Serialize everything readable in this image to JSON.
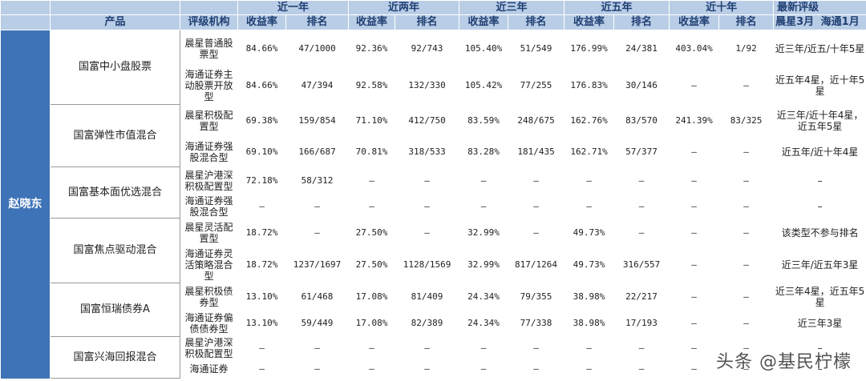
{
  "header": {
    "product": "产品",
    "agency": "评级机构",
    "periods": [
      "近一年",
      "近两年",
      "近三年",
      "近五年",
      "近十年"
    ],
    "return_label": "收益率",
    "rank_label": "排名",
    "latest": "最新评级",
    "latest_sub1": "晨星3月",
    "latest_sub2": "海通1月"
  },
  "manager": "赵晓东",
  "funds": [
    {
      "name": "国富中小盘股票",
      "rows": [
        {
          "agency": "晨星普通股票型",
          "cells": [
            "84.66%",
            "47/1000",
            "92.36%",
            "92/743",
            "105.40%",
            "51/549",
            "176.99%",
            "24/381",
            "403.04%",
            "1/92"
          ],
          "rating": "近三年/近五/十年5星"
        },
        {
          "agency": "海通证券主动股票开放型",
          "cells": [
            "84.66%",
            "47/394",
            "92.58%",
            "132/330",
            "105.42%",
            "77/255",
            "176.83%",
            "30/146",
            "–",
            "–"
          ],
          "rating": "近五年4星，近十年5星"
        }
      ]
    },
    {
      "name": "国富弹性市值混合",
      "rows": [
        {
          "agency": "晨星积极配置型",
          "cells": [
            "69.38%",
            "159/854",
            "71.10%",
            "412/750",
            "83.59%",
            "248/675",
            "162.76%",
            "83/570",
            "241.39%",
            "83/325"
          ],
          "rating": "近三年/近十年4星，近五年5星"
        },
        {
          "agency": "海通证券强股混合型",
          "cells": [
            "69.10%",
            "166/687",
            "70.81%",
            "318/533",
            "83.28%",
            "181/435",
            "162.71%",
            "57/377",
            "–",
            "–"
          ],
          "rating": "近五年/近十年4星"
        }
      ]
    },
    {
      "name": "国富基本面优选混合",
      "rows": [
        {
          "agency": "晨星沪港深积极配置型",
          "cells": [
            "72.18%",
            "58/312",
            "–",
            "–",
            "–",
            "–",
            "–",
            "–",
            "–",
            "–"
          ],
          "rating": "–"
        },
        {
          "agency": "海通证券强股混合型",
          "cells": [
            "–",
            "–",
            "–",
            "–",
            "–",
            "–",
            "–",
            "–",
            "–",
            "–"
          ],
          "rating": "–"
        }
      ]
    },
    {
      "name": "国富焦点驱动混合",
      "rows": [
        {
          "agency": "晨星灵活配置型",
          "cells": [
            "18.72%",
            "–",
            "27.50%",
            "–",
            "32.99%",
            "–",
            "49.73%",
            "–",
            "–",
            "–"
          ],
          "rating": "该类型不参与排名"
        },
        {
          "agency": "海通证券灵活策略混合型",
          "cells": [
            "18.72%",
            "1237/1697",
            "27.50%",
            "1128/1569",
            "32.99%",
            "817/1264",
            "49.73%",
            "316/557",
            "–",
            "–"
          ],
          "rating": "近三年/近五年3星"
        }
      ]
    },
    {
      "name": "国富恒瑞债券A",
      "rows": [
        {
          "agency": "晨星积极债券型",
          "cells": [
            "13.10%",
            "61/468",
            "17.08%",
            "81/409",
            "24.34%",
            "79/355",
            "38.98%",
            "22/217",
            "–",
            "–"
          ],
          "rating": "近三年4星，近五年5星"
        },
        {
          "agency": "海通证券偏债债券型",
          "cells": [
            "13.10%",
            "59/449",
            "17.08%",
            "82/389",
            "24.34%",
            "77/338",
            "38.98%",
            "17/193",
            "–",
            "–"
          ],
          "rating": "近三年3星"
        }
      ]
    },
    {
      "name": "国富兴海回报混合",
      "rows": [
        {
          "agency": "晨星沪港深积极配置型",
          "cells": [
            "–",
            "–",
            "–",
            "–",
            "–",
            "–",
            "–",
            "–",
            "–",
            "–"
          ],
          "rating": "–"
        },
        {
          "agency": "海通证券",
          "cells": [
            "–",
            "–",
            "–",
            "–",
            "–",
            "–",
            "–",
            "–",
            "–",
            "–"
          ],
          "rating": "–"
        }
      ]
    }
  ],
  "watermark": "头条 @基民柠檬"
}
